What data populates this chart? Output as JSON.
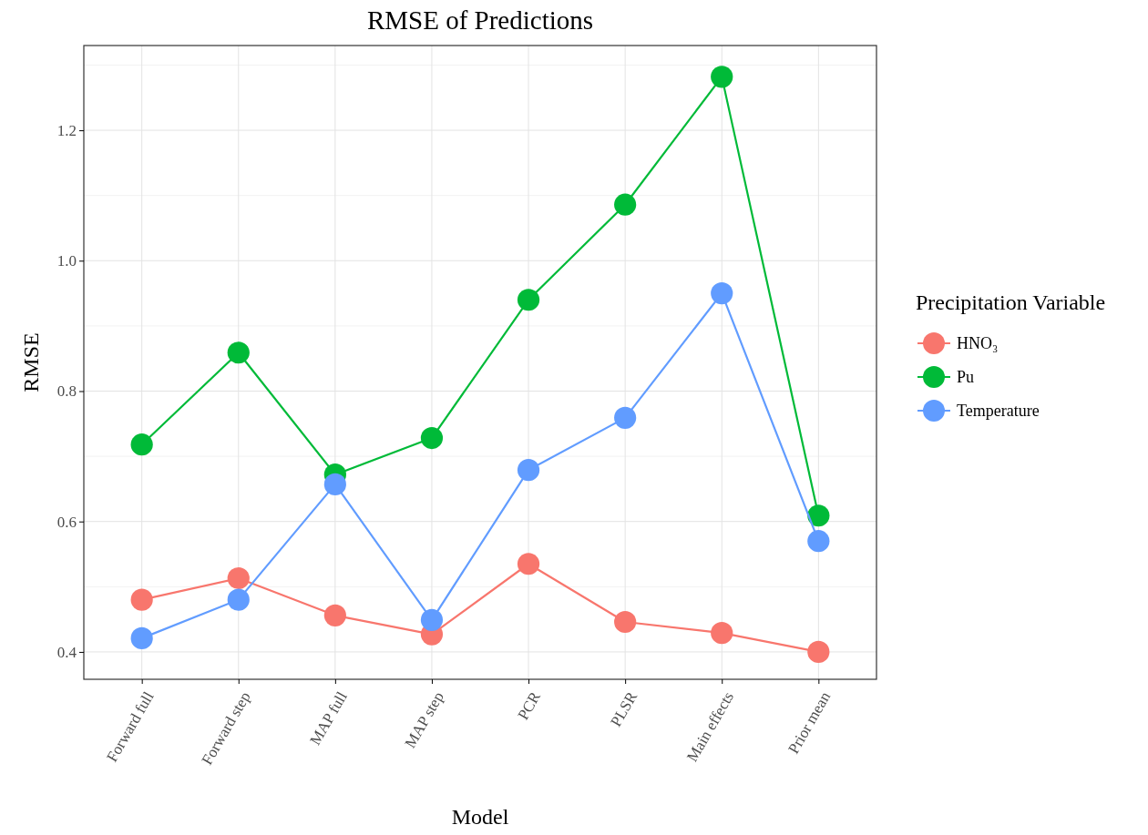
{
  "chart_data": {
    "type": "line",
    "title": "RMSE of Predictions",
    "xlabel": "Model",
    "ylabel": "RMSE",
    "legend_title": "Precipitation Variable",
    "categories": [
      "Forward full",
      "Forward step",
      "MAP full",
      "MAP step",
      "PCR",
      "PLSR",
      "Main effects",
      "Prior mean"
    ],
    "series": [
      {
        "name": "HNO₃",
        "color": "#f8766d",
        "values": [
          0.48,
          0.513,
          0.456,
          0.427,
          0.535,
          0.446,
          0.429,
          0.4
        ]
      },
      {
        "name": "Pu",
        "color": "#00ba38",
        "values": [
          0.718,
          0.859,
          0.672,
          0.728,
          0.94,
          1.086,
          1.282,
          0.609
        ]
      },
      {
        "name": "Temperature",
        "color": "#619cff",
        "values": [
          0.421,
          0.48,
          0.657,
          0.449,
          0.679,
          0.759,
          0.95,
          0.57
        ]
      }
    ],
    "ylim": [
      0.358,
      1.33
    ],
    "yticks": [
      {
        "value": 0.4,
        "label": "0.4"
      },
      {
        "value": 0.6,
        "label": "0.6"
      },
      {
        "value": 0.8,
        "label": "0.8"
      },
      {
        "value": 1.0,
        "label": "1.0"
      },
      {
        "value": 1.2,
        "label": "1.2"
      }
    ],
    "grid": true,
    "legend": "right",
    "marker": "circle",
    "line_style": "solid"
  }
}
